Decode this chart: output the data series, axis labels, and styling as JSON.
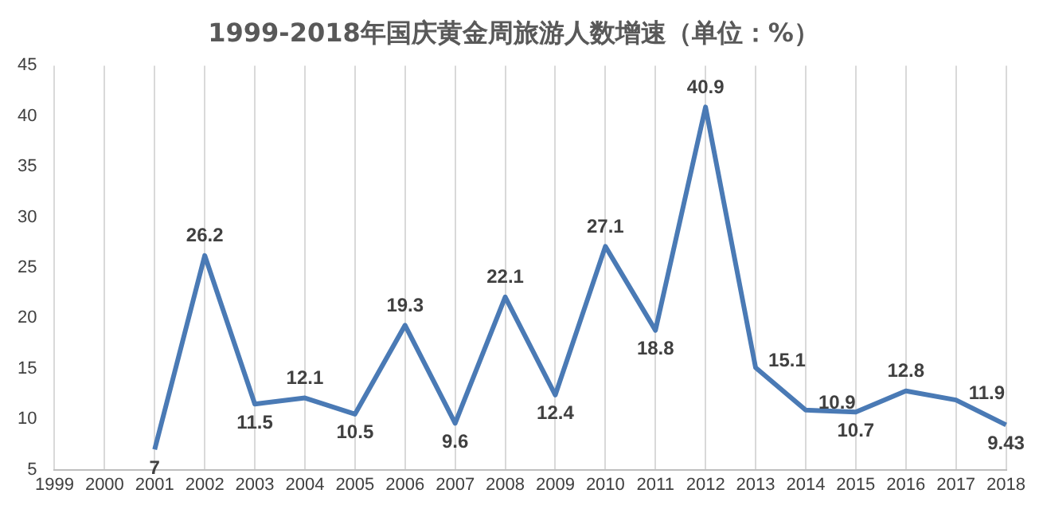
{
  "chart_data": {
    "type": "line",
    "title": "1999-2018年国庆黄金周旅游人数增速（单位：%）",
    "categories": [
      "1999",
      "2000",
      "2001",
      "2002",
      "2003",
      "2004",
      "2005",
      "2006",
      "2007",
      "2008",
      "2009",
      "2010",
      "2011",
      "2012",
      "2013",
      "2014",
      "2015",
      "2016",
      "2017",
      "2018"
    ],
    "series": [
      {
        "color": "#4a7ab5",
        "values": [
          null,
          null,
          7,
          26.2,
          11.5,
          12.1,
          10.5,
          19.3,
          9.6,
          22.1,
          12.4,
          27.1,
          18.8,
          40.9,
          15.1,
          10.9,
          10.7,
          12.8,
          11.9,
          9.43
        ]
      }
    ],
    "ylim": [
      5,
      45
    ],
    "yticks": [
      5,
      10,
      15,
      20,
      25,
      30,
      35,
      40,
      45
    ],
    "grid": "x",
    "data_labels": true,
    "legend": false,
    "marker": "none",
    "line_style": "solid"
  }
}
